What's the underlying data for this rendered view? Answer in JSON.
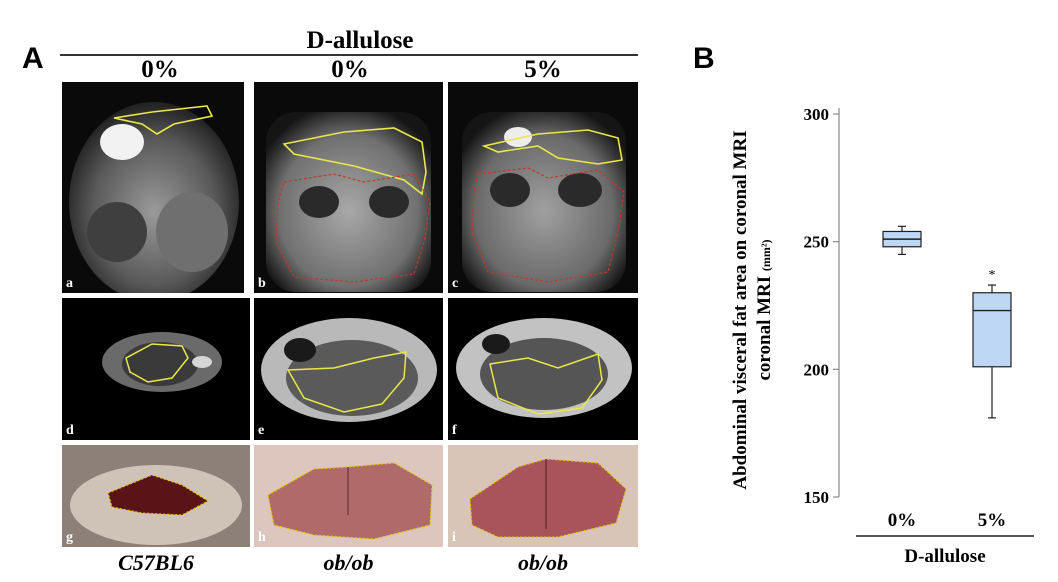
{
  "panel_a": {
    "letter": "A",
    "group_header": "D-allulose",
    "column_headers": [
      "0%",
      "0%",
      "5%"
    ],
    "strain_labels": [
      "C57BL6",
      "ob/ob",
      "ob/ob"
    ],
    "sublabels": [
      "a",
      "b",
      "c",
      "d",
      "e",
      "f",
      "g",
      "h",
      "i"
    ]
  },
  "panel_b": {
    "letter": "B"
  },
  "chart_data": {
    "type": "box",
    "ylabel_main": "Abdominal visceral fat area on coronal MRI",
    "ylabel_unit": "(mm²)",
    "xlabel": "D-allulose",
    "ylim": [
      150,
      300
    ],
    "yticks": [
      150,
      200,
      250,
      300
    ],
    "categories": [
      "0%",
      "5%"
    ],
    "boxes": [
      {
        "category": "0%",
        "whisker_low": 245,
        "q1": 248,
        "median": 251,
        "q3": 254,
        "whisker_high": 256,
        "annotation": ""
      },
      {
        "category": "5%",
        "whisker_low": 181,
        "q1": 201,
        "median": 223,
        "q3": 230,
        "whisker_high": 233,
        "annotation": "*"
      }
    ],
    "box_fill": "#bdd7f5",
    "box_stroke": "#1f1f1f"
  }
}
